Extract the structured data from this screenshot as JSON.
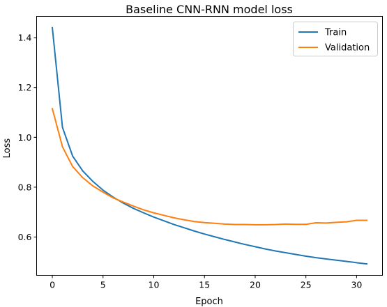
{
  "chart_data": {
    "type": "line",
    "title": "Baseline CNN-RNN model loss",
    "xlabel": "Epoch",
    "ylabel": "Loss",
    "xlim": [
      -1.55,
      32.55
    ],
    "ylim": [
      0.4462,
      1.4856
    ],
    "xticks": [
      0,
      5,
      10,
      15,
      20,
      25,
      30
    ],
    "yticks": [
      0.6,
      0.8,
      1.0,
      1.2,
      1.4
    ],
    "ytick_labels": [
      "0.6",
      "0.8",
      "1.0",
      "1.2",
      "1.4"
    ],
    "grid": false,
    "legend_position": "top-right",
    "x": [
      0,
      1,
      2,
      3,
      4,
      5,
      6,
      7,
      8,
      9,
      10,
      11,
      12,
      13,
      14,
      15,
      16,
      17,
      18,
      19,
      20,
      21,
      22,
      23,
      24,
      25,
      26,
      27,
      28,
      29,
      30,
      31
    ],
    "series": [
      {
        "name": "Train",
        "color": "#1f77b4",
        "values": [
          1.44,
          1.04,
          0.925,
          0.865,
          0.823,
          0.788,
          0.76,
          0.736,
          0.715,
          0.697,
          0.68,
          0.665,
          0.65,
          0.637,
          0.624,
          0.612,
          0.601,
          0.59,
          0.58,
          0.57,
          0.561,
          0.552,
          0.544,
          0.537,
          0.53,
          0.523,
          0.517,
          0.512,
          0.507,
          0.502,
          0.497,
          0.492
        ]
      },
      {
        "name": "Validation",
        "color": "#ff7f0e",
        "values": [
          1.115,
          0.962,
          0.883,
          0.838,
          0.805,
          0.78,
          0.757,
          0.74,
          0.724,
          0.709,
          0.697,
          0.687,
          0.677,
          0.669,
          0.662,
          0.658,
          0.655,
          0.652,
          0.65,
          0.65,
          0.649,
          0.649,
          0.65,
          0.652,
          0.651,
          0.651,
          0.657,
          0.656,
          0.659,
          0.661,
          0.667,
          0.667
        ]
      }
    ]
  }
}
